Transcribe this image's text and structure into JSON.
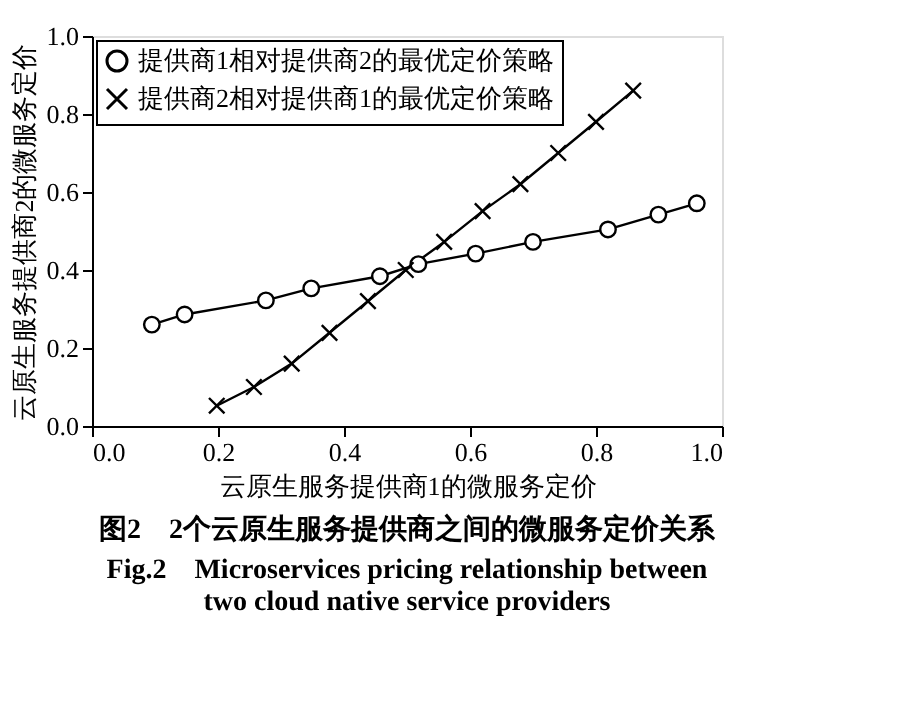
{
  "chart_data": {
    "type": "line",
    "title": "图2　2个云原生服务提供商之间的微服务定价关系",
    "subtitle": "Fig.2　Microservices pricing relationship between two cloud native service providers",
    "xlabel": "云原生服务提供商1的微服务定价",
    "ylabel": "云原生服务提供商2的微服务定价",
    "series": [
      {
        "name": "提供商1相对提供商2的最优定价策略",
        "color": "#000000",
        "marker": "circle",
        "x": [
          0.095,
          0.147,
          0.276,
          0.348,
          0.457,
          0.518,
          0.609,
          0.7,
          0.819,
          0.899,
          0.96
        ],
        "values": [
          0.26,
          0.286,
          0.322,
          0.353,
          0.384,
          0.415,
          0.442,
          0.472,
          0.504,
          0.542,
          0.571
        ]
      },
      {
        "name": "提供商2相对提供商1的最优定价策略",
        "color": "#000000",
        "marker": "cross",
        "x": [
          0.198,
          0.257,
          0.317,
          0.377,
          0.438,
          0.498,
          0.559,
          0.62,
          0.68,
          0.74,
          0.8,
          0.859
        ],
        "values": [
          0.052,
          0.1,
          0.16,
          0.239,
          0.32,
          0.4,
          0.472,
          0.551,
          0.62,
          0.7,
          0.78,
          0.86
        ]
      }
    ],
    "xlim": [
      0,
      1
    ],
    "ylim": [
      0,
      1
    ],
    "xticks": [
      {
        "value": 0,
        "label": "0.0"
      },
      0.2,
      0.4,
      0.6,
      0.8,
      {
        "value": 1,
        "label": "1.0"
      }
    ],
    "yticks": [
      {
        "value": 0,
        "label": "0.0"
      },
      0.2,
      0.4,
      0.6,
      0.8,
      {
        "value": 1,
        "label": "1.0"
      }
    ],
    "grid": false,
    "legend": "top left",
    "line_style": "solid"
  }
}
